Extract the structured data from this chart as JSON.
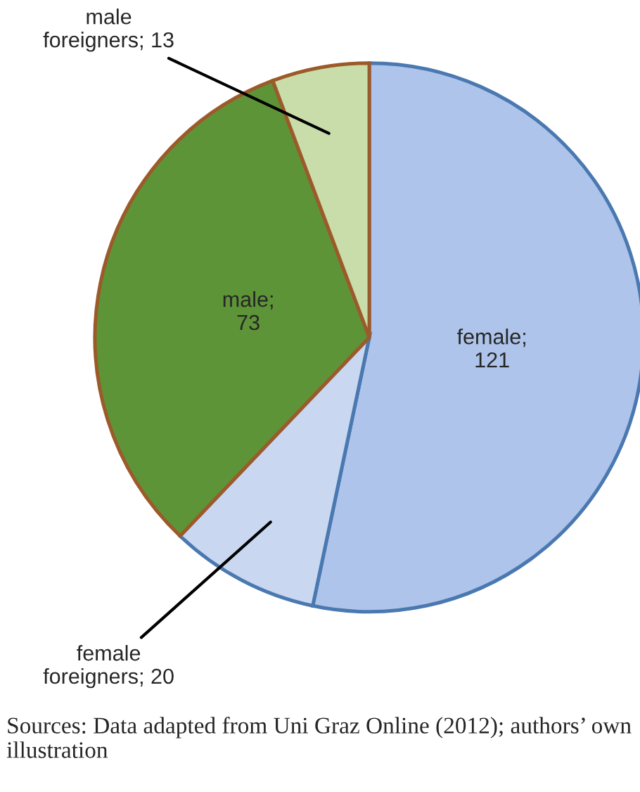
{
  "chart_data": {
    "type": "pie",
    "categories": [
      null,
      null,
      null,
      null
    ],
    "values": [
      121,
      20,
      73,
      13
    ],
    "colors": [
      "#aec4ea",
      "#c9d8f0",
      "#5e9438",
      "#c9ddaa"
    ],
    "value_labels": [
      "female;\n121",
      "female\nforeigners; 20",
      "male;\n73",
      "male\nforeigners; 13"
    ],
    "annotations": [
      "Sources: Data adapted from Uni Graz Online (2012); authors’ own illustration"
    ]
  }
}
